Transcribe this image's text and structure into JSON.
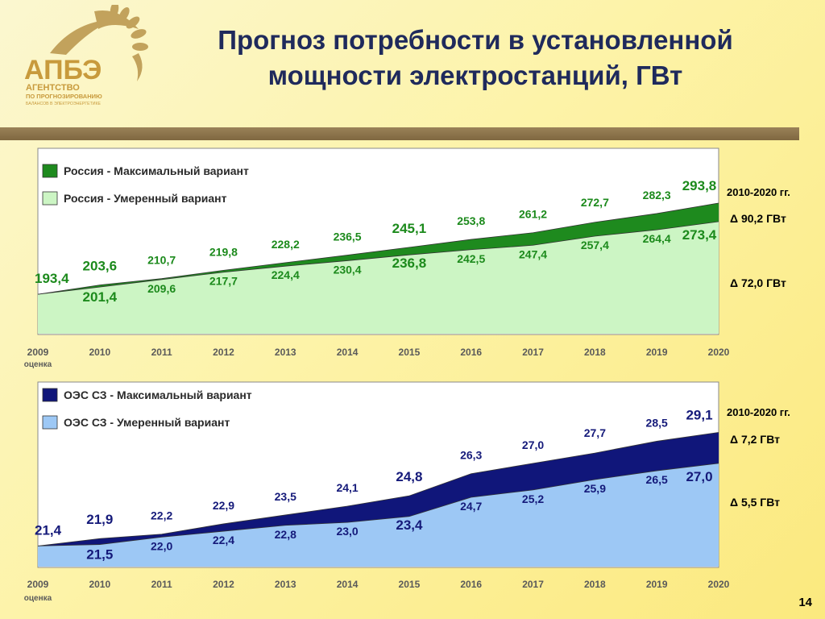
{
  "title_line1": "Прогноз потребности в установленной",
  "title_line2": "мощности электростанций, ГВт",
  "logo": {
    "abbr": "АПБЭ",
    "line1": "АГЕНТСТВО",
    "line2": "ПО ПРОГНОЗИРОВАНИЮ",
    "line3": "БАЛАНСОВ В ЭЛЕКТРОЭНЕРГЕТИКЕ"
  },
  "page_number": "14",
  "colors": {
    "russia_max": "#1e8a1e",
    "russia_mod": "#ccf5c4",
    "russia_text": "#1c8a1c",
    "oes_max": "#10167a",
    "oes_mod": "#9dc8f5",
    "oes_text": "#151a7a"
  },
  "chart_data": [
    {
      "type": "area",
      "categories": [
        "2009",
        "2010",
        "2011",
        "2012",
        "2013",
        "2014",
        "2015",
        "2016",
        "2017",
        "2018",
        "2019",
        "2020"
      ],
      "category_sublabels": {
        "2009": "оценка"
      },
      "series": [
        {
          "name": "Россия - Максимальный вариант",
          "values": [
            193.4,
            203.6,
            210.7,
            219.8,
            228.2,
            236.5,
            245.1,
            253.8,
            261.2,
            272.7,
            282.3,
            293.8
          ]
        },
        {
          "name": "Россия - Умеренный вариант",
          "values": [
            193.4,
            201.4,
            209.6,
            217.7,
            224.4,
            230.4,
            236.8,
            242.5,
            247.4,
            257.4,
            264.4,
            273.4
          ]
        }
      ],
      "max_labels": [
        "193,4",
        "203,6",
        "210,7",
        "219,8",
        "228,2",
        "236,5",
        "245,1",
        "253,8",
        "261,2",
        "272,7",
        "282,3",
        "293,8"
      ],
      "mod_labels": [
        "",
        "201,4",
        "209,6",
        "217,7",
        "224,4",
        "230,4",
        "236,8",
        "242,5",
        "247,4",
        "257,4",
        "264,4",
        "273,4"
      ],
      "ylim": [
        150,
        300
      ],
      "legend_placement": "top-left",
      "annotations": {
        "period": "2010-2020 гг.",
        "delta_max": "Δ 90,2 ГВт",
        "delta_mod": "Δ 72,0 ГВт"
      }
    },
    {
      "type": "area",
      "categories": [
        "2009",
        "2010",
        "2011",
        "2012",
        "2013",
        "2014",
        "2015",
        "2016",
        "2017",
        "2018",
        "2019",
        "2020"
      ],
      "category_sublabels": {
        "2009": "оценка"
      },
      "series": [
        {
          "name": "ОЭС СЗ - Максимальный вариант",
          "values": [
            21.4,
            21.9,
            22.2,
            22.9,
            23.5,
            24.1,
            24.8,
            26.3,
            27.0,
            27.7,
            28.5,
            29.1
          ]
        },
        {
          "name": "ОЭС СЗ - Умеренный вариант",
          "values": [
            21.4,
            21.5,
            22.0,
            22.4,
            22.8,
            23.0,
            23.4,
            24.7,
            25.2,
            25.9,
            26.5,
            27.0
          ]
        }
      ],
      "max_labels": [
        "21,4",
        "21,9",
        "22,2",
        "22,9",
        "23,5",
        "24,1",
        "24,8",
        "26,3",
        "27,0",
        "27,7",
        "28,5",
        "29,1"
      ],
      "mod_labels": [
        "",
        "21,5",
        "22,0",
        "22,4",
        "22,8",
        "23,0",
        "23,4",
        "24,7",
        "25,2",
        "25,9",
        "26,5",
        "27,0"
      ],
      "ylim": [
        20,
        30
      ],
      "legend_placement": "top-left",
      "annotations": {
        "period": "2010-2020 гг.",
        "delta_max": "Δ 7,2 ГВт",
        "delta_mod": "Δ 5,5 ГВт"
      }
    }
  ]
}
